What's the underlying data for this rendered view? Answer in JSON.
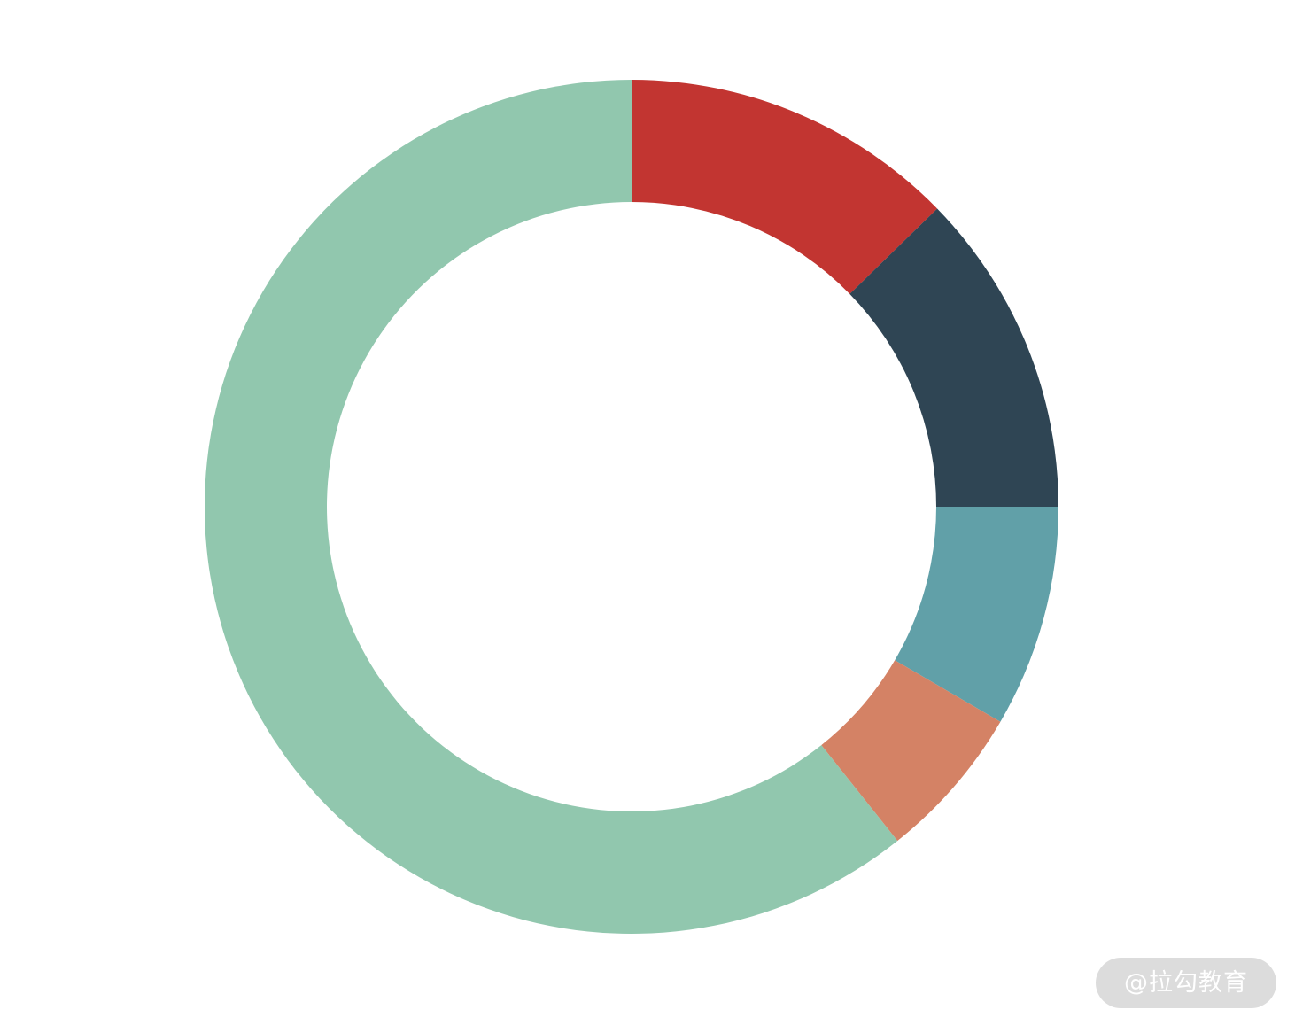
{
  "chart_data": {
    "type": "pie",
    "donut": true,
    "start_angle_deg": 0,
    "direction": "clockwise",
    "legend": "none",
    "slices": [
      {
        "value": 12.7,
        "color": "#c23531"
      },
      {
        "value": 12.3,
        "color": "#2f4554"
      },
      {
        "value": 8.4,
        "color": "#61a0a8"
      },
      {
        "value": 5.9,
        "color": "#d48265"
      },
      {
        "value": 60.7,
        "color": "#91c7ae"
      }
    ]
  },
  "watermark": {
    "text": "@拉勾教育"
  }
}
